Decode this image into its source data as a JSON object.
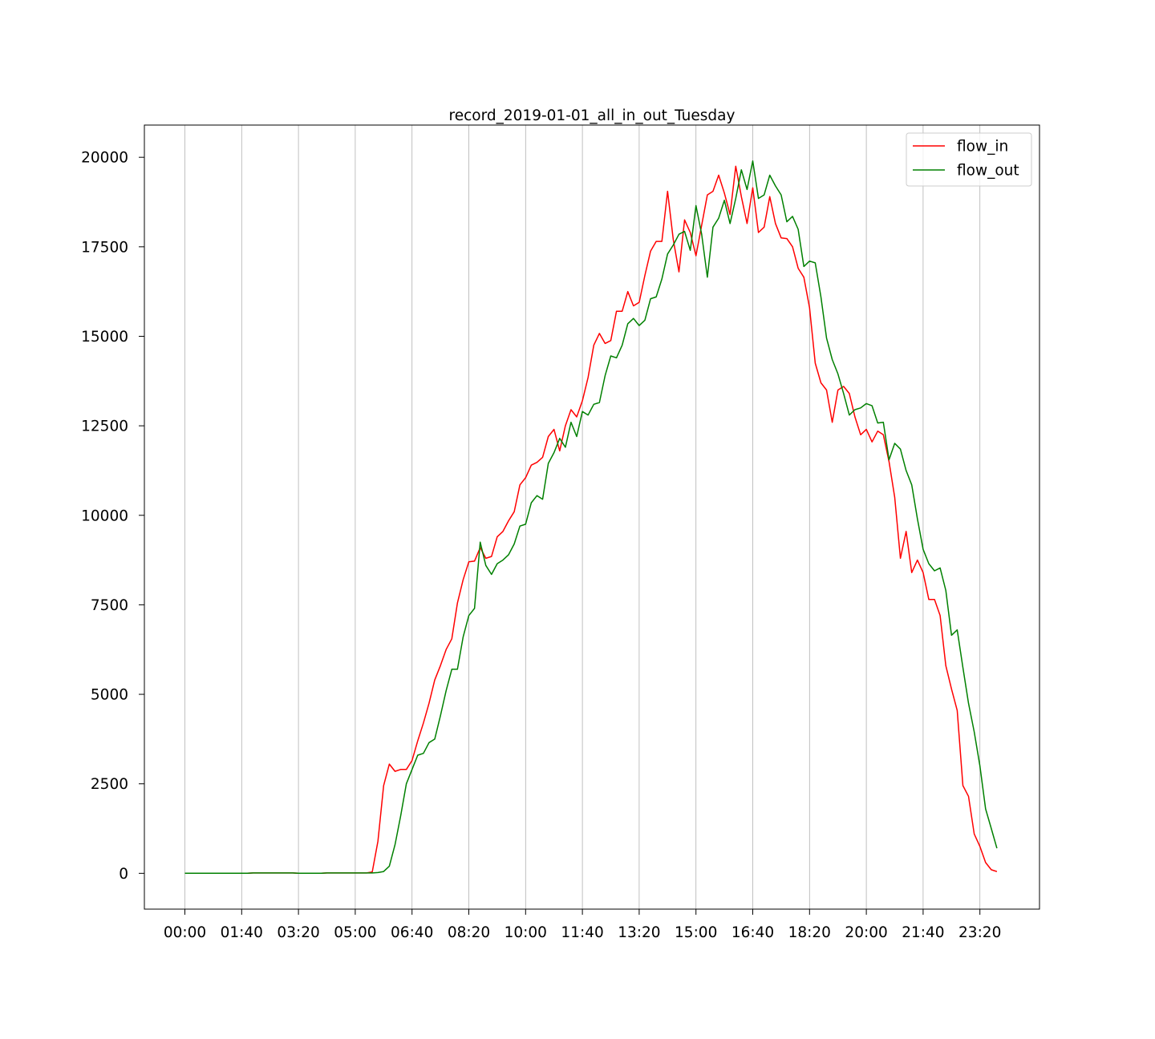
{
  "chart_data": {
    "type": "line",
    "title": "record_2019-01-01_all_in_out_Tuesday",
    "xlabel": "",
    "ylabel": "",
    "x_interval_minutes": 10,
    "x_start": "00:00",
    "xtick_labels": [
      "00:00",
      "01:40",
      "03:20",
      "05:00",
      "06:40",
      "08:20",
      "10:00",
      "11:40",
      "13:20",
      "15:00",
      "16:40",
      "18:20",
      "20:00",
      "21:40",
      "23:20"
    ],
    "ytick_values": [
      0,
      2500,
      5000,
      7500,
      10000,
      12500,
      15000,
      17500,
      20000
    ],
    "ytick_labels": [
      "0",
      "2500",
      "5000",
      "7500",
      "10000",
      "12500",
      "15000",
      "17500",
      "20000"
    ],
    "ylim": [
      -1000,
      20900
    ],
    "xgrid": true,
    "ygrid": false,
    "legend_position": "upper right",
    "series": [
      {
        "name": "flow_in",
        "color": "#ff0000",
        "values": [
          0,
          0,
          0,
          0,
          0,
          0,
          0,
          0,
          0,
          0,
          0,
          0,
          10,
          10,
          10,
          10,
          10,
          10,
          10,
          10,
          0,
          0,
          0,
          0,
          0,
          10,
          10,
          10,
          10,
          10,
          10,
          10,
          10,
          40,
          900,
          2450,
          3050,
          2850,
          2900,
          2900,
          3150,
          3700,
          4200,
          4750,
          5400,
          5800,
          6250,
          6550,
          7550,
          8200,
          8700,
          8720,
          9100,
          8800,
          8850,
          9400,
          9550,
          9850,
          10100,
          10850,
          11050,
          11400,
          11480,
          11620,
          12200,
          12400,
          11800,
          12500,
          12950,
          12750,
          13200,
          13850,
          14750,
          15080,
          14800,
          14880,
          15700,
          15700,
          16250,
          15850,
          15950,
          16700,
          17380,
          17650,
          17650,
          19050,
          17700,
          16800,
          18250,
          17900,
          17250,
          18100,
          18950,
          19050,
          19500,
          19000,
          18400,
          19750,
          18900,
          18150,
          19150,
          17900,
          18050,
          18900,
          18150,
          17750,
          17730,
          17500,
          16900,
          16650,
          15800,
          14250,
          13700,
          13500,
          12600,
          13500,
          13600,
          13400,
          12750,
          12250,
          12400,
          12050,
          12350,
          12250,
          11500,
          10500,
          8800,
          9550,
          8400,
          8750,
          8400,
          7650,
          7650,
          7200,
          5800,
          5150,
          4550,
          2450,
          2150,
          1100,
          750,
          300,
          100,
          50
        ]
      },
      {
        "name": "flow_out",
        "color": "#008000",
        "values": [
          0,
          0,
          0,
          0,
          0,
          0,
          0,
          0,
          0,
          0,
          0,
          0,
          10,
          10,
          10,
          10,
          10,
          10,
          10,
          10,
          0,
          0,
          0,
          0,
          0,
          10,
          10,
          10,
          10,
          10,
          10,
          10,
          10,
          10,
          20,
          50,
          200,
          800,
          1600,
          2500,
          2900,
          3300,
          3350,
          3650,
          3750,
          4400,
          5100,
          5700,
          5700,
          6600,
          7200,
          7400,
          9250,
          8600,
          8350,
          8650,
          8750,
          8900,
          9200,
          9700,
          9750,
          10350,
          10550,
          10450,
          11450,
          11750,
          12150,
          11900,
          12600,
          12200,
          12900,
          12800,
          13100,
          13150,
          13900,
          14450,
          14400,
          14750,
          15350,
          15500,
          15300,
          15450,
          16050,
          16100,
          16600,
          17300,
          17550,
          17850,
          17930,
          17400,
          18650,
          17850,
          16650,
          18050,
          18300,
          18800,
          18150,
          18850,
          19650,
          19100,
          19900,
          18850,
          18950,
          19500,
          19200,
          18950,
          18200,
          18350,
          17990,
          16950,
          17100,
          17050,
          16100,
          14950,
          14350,
          13950,
          13400,
          12800,
          12950,
          13000,
          13120,
          13060,
          12580,
          12600,
          11550,
          12010,
          11850,
          11250,
          10850,
          9900,
          9050,
          8650,
          8450,
          8530,
          7900,
          6650,
          6800,
          5750,
          4750,
          3950,
          3000,
          1800,
          1250,
          700
        ]
      }
    ]
  }
}
